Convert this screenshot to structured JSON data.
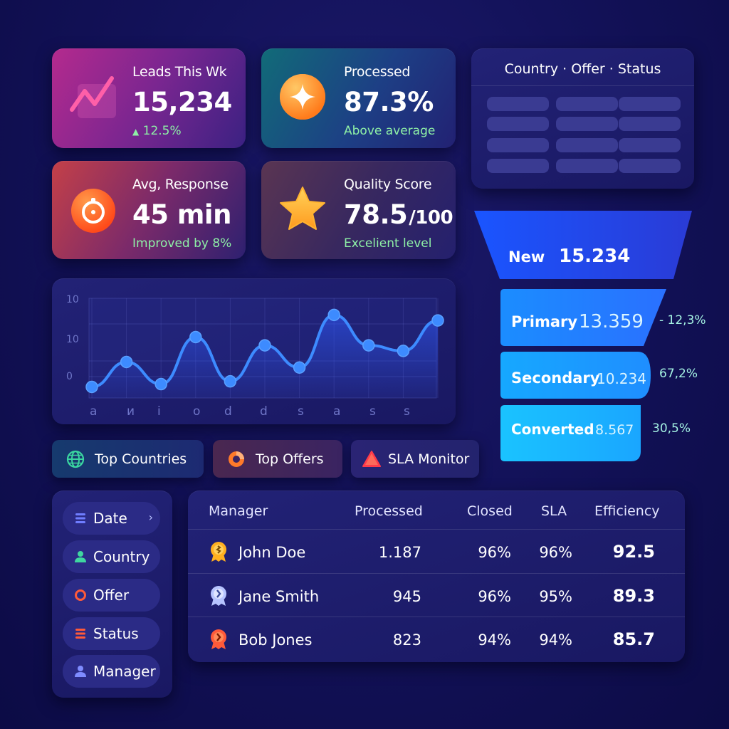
{
  "kpis": [
    {
      "label": "Leads This Wk",
      "value": "15,234",
      "unit": "",
      "sub": "12.5%",
      "sub_arrow": "▲",
      "icon": "trend-line-icon",
      "accent": "#ff5fa8"
    },
    {
      "label": "Processed",
      "value": "87.3%",
      "unit": "",
      "sub": "Above average",
      "icon": "sparkle-icon",
      "accent": "#ff9a2e"
    },
    {
      "label": "Avg, Response",
      "value": "45 min",
      "unit": "",
      "sub": "Improved by 8%",
      "icon": "timer-icon",
      "accent": "#ff6a2a"
    },
    {
      "label": "Quality Score",
      "value": "78.5",
      "unit": "/100",
      "sub": "Excelient level",
      "icon": "star-icon",
      "accent": "#ffb330"
    }
  ],
  "preview": {
    "title": "Country · Offer · Status"
  },
  "chart_data": {
    "type": "line",
    "y_tick_labels": [
      "10",
      "10",
      "0"
    ],
    "x_tick_labels": [
      "a",
      "и",
      "i",
      "o",
      "d",
      "d",
      "s",
      "a",
      "s",
      "s"
    ],
    "values": [
      2,
      6.5,
      2.5,
      11,
      3,
      9.5,
      5.5,
      15,
      9.5,
      8.5,
      14
    ],
    "ylim": [
      0,
      18
    ],
    "grid": true,
    "line_color": "#3d8bff"
  },
  "funnel": [
    {
      "label": "New",
      "value": "15.234",
      "pct": ""
    },
    {
      "label": "Primary",
      "value": "13.359",
      "pct": "- 12,3%"
    },
    {
      "label": "Secondary",
      "value": "10.234",
      "pct": "67,2%"
    },
    {
      "label": "Converted",
      "value": "8.567",
      "pct": "30,5%"
    }
  ],
  "tabs": [
    {
      "label": "Top Countries",
      "icon": "globe-icon",
      "color": "#3ad6a0"
    },
    {
      "label": "Top Offers",
      "icon": "pie-chart-icon",
      "color": "#ff7a2a"
    },
    {
      "label": "SLA Monitor",
      "icon": "warning-icon",
      "color": "#ff3b4a"
    }
  ],
  "filters": [
    {
      "label": "Date",
      "icon": "list-icon",
      "color": "#6f7dff",
      "chevron": "›"
    },
    {
      "label": "Country",
      "icon": "person-icon",
      "color": "#3fd6a0",
      "chevron": ""
    },
    {
      "label": "Offer",
      "icon": "ring-icon",
      "color": "#ff5a3a",
      "chevron": ""
    },
    {
      "label": "Status",
      "icon": "bars-icon",
      "color": "#ff5a3a",
      "chevron": ""
    },
    {
      "label": "Manager",
      "icon": "person-icon",
      "color": "#7f8cff",
      "chevron": ""
    }
  ],
  "table": {
    "headers": [
      "Manager",
      "Processed",
      "Closed",
      "SLA",
      "Efficiency"
    ],
    "rows": [
      {
        "name": "John Doe",
        "processed": "1.187",
        "closed": "96%",
        "sla": "96%",
        "efficiency": "92.5",
        "badge_color": "#ffb020"
      },
      {
        "name": "Jane Smith",
        "processed": "945",
        "closed": "96%",
        "sla": "95%",
        "efficiency": "89.3",
        "badge_color": "#b7c4ff"
      },
      {
        "name": "Bob Jones",
        "processed": "823",
        "closed": "94%",
        "sla": "94%",
        "efficiency": "85.7",
        "badge_color": "#ff5a3a"
      }
    ]
  }
}
